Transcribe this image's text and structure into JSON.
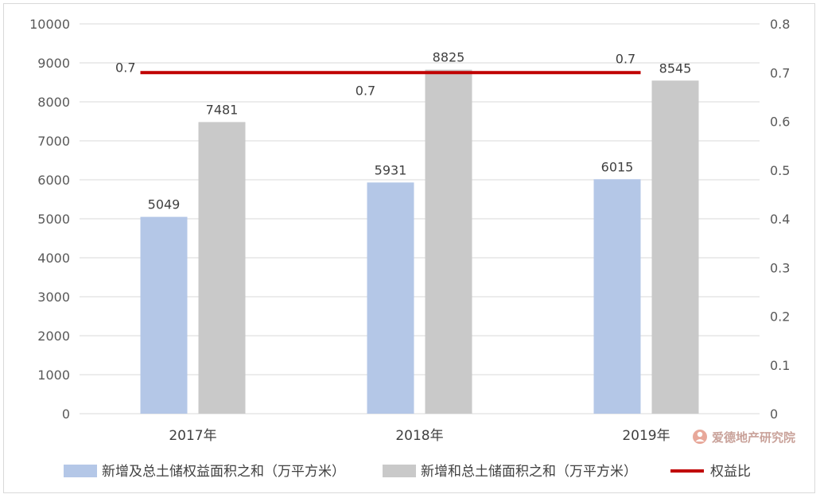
{
  "chart_data": {
    "type": "bar",
    "categories": [
      "2017年",
      "2018年",
      "2019年"
    ],
    "series": [
      {
        "name": "新增及总土储权益面积之和（万平方米）",
        "type": "bar",
        "axis": "left",
        "values": [
          5049,
          5931,
          6015
        ],
        "color": "#b4c7e7"
      },
      {
        "name": "新增和总土储面积之和（万平方米）",
        "type": "bar",
        "axis": "left",
        "values": [
          7481,
          8825,
          8545
        ],
        "color": "#c9c9c9"
      },
      {
        "name": "权益比",
        "type": "line",
        "axis": "right",
        "values": [
          0.7,
          0.7,
          0.7
        ],
        "labels": [
          "0.7",
          "0.7",
          "0.7"
        ],
        "color": "#c00000"
      }
    ],
    "y_left": {
      "min": 0,
      "max": 10000,
      "ticks": [
        "0",
        "1000",
        "2000",
        "3000",
        "4000",
        "5000",
        "6000",
        "7000",
        "8000",
        "9000",
        "10000"
      ]
    },
    "y_right": {
      "min": 0,
      "max": 0.8,
      "ticks": [
        "0",
        "0.1",
        "0.2",
        "0.3",
        "0.4",
        "0.5",
        "0.6",
        "0.7",
        "0.8"
      ]
    },
    "grid": true,
    "legend_position": "bottom"
  },
  "watermark": {
    "text": "爱德地产研究院"
  }
}
